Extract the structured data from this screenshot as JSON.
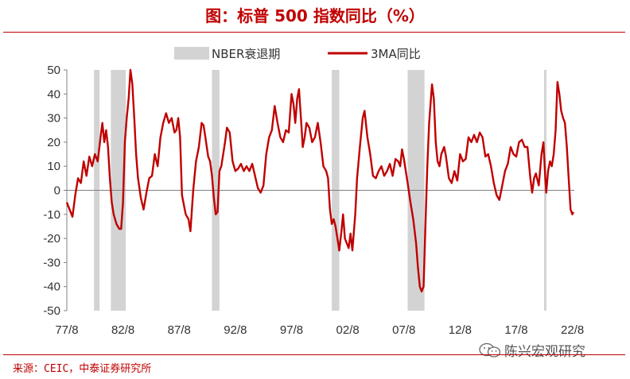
{
  "title": "图：标普 500 指数同比（%）",
  "source": "来源：CEIC，中泰证券研究所",
  "watermark": "陈兴宏观研究",
  "colors": {
    "accent": "#c00000",
    "recession": "#d3d3d3",
    "axis": "#808080"
  },
  "chart_data": {
    "type": "line",
    "legend": [
      "NBER衰退期",
      "3MA同比"
    ],
    "legend_position": "top-center",
    "ylim": [
      -50,
      50
    ],
    "y_ticks": [
      50,
      40,
      30,
      20,
      10,
      0,
      -10,
      -20,
      -30,
      -40,
      -50
    ],
    "x_ticks": [
      "77/8",
      "82/8",
      "87/8",
      "92/8",
      "97/8",
      "02/8",
      "07/8",
      "12/8",
      "17/8",
      "22/8"
    ],
    "recessions": [
      {
        "start": "1980/1",
        "end": "1980/7"
      },
      {
        "start": "1981/7",
        "end": "1982/11"
      },
      {
        "start": "1990/7",
        "end": "1991/3"
      },
      {
        "start": "2001/3",
        "end": "2001/11"
      },
      {
        "start": "2007/12",
        "end": "2009/6"
      },
      {
        "start": "2020/2",
        "end": "2020/4"
      }
    ],
    "series": [
      {
        "name": "3MA同比",
        "color": "#c00000",
        "points": [
          [
            "1977/8",
            -5
          ],
          [
            "1977/11",
            -8
          ],
          [
            "1978/2",
            -11
          ],
          [
            "1978/5",
            -2
          ],
          [
            "1978/8",
            5
          ],
          [
            "1978/11",
            3
          ],
          [
            "1979/2",
            12
          ],
          [
            "1979/5",
            6
          ],
          [
            "1979/8",
            14
          ],
          [
            "1979/11",
            10
          ],
          [
            "1980/2",
            15
          ],
          [
            "1980/5",
            12
          ],
          [
            "1980/8",
            22
          ],
          [
            "1980/10",
            28
          ],
          [
            "1980/12",
            20
          ],
          [
            "1981/2",
            25
          ],
          [
            "1981/4",
            18
          ],
          [
            "1981/6",
            5
          ],
          [
            "1981/8",
            -5
          ],
          [
            "1981/10",
            -10
          ],
          [
            "1982/1",
            -14
          ],
          [
            "1982/4",
            -16
          ],
          [
            "1982/6",
            -16
          ],
          [
            "1982/8",
            -5
          ],
          [
            "1982/10",
            20
          ],
          [
            "1982/12",
            30
          ],
          [
            "1983/2",
            38
          ],
          [
            "1983/4",
            50
          ],
          [
            "1983/6",
            44
          ],
          [
            "1983/8",
            30
          ],
          [
            "1983/10",
            15
          ],
          [
            "1983/12",
            5
          ],
          [
            "1984/3",
            -3
          ],
          [
            "1984/6",
            -8
          ],
          [
            "1984/9",
            -1
          ],
          [
            "1984/12",
            5
          ],
          [
            "1985/3",
            6
          ],
          [
            "1985/6",
            15
          ],
          [
            "1985/9",
            10
          ],
          [
            "1985/12",
            22
          ],
          [
            "1986/3",
            28
          ],
          [
            "1986/6",
            32
          ],
          [
            "1986/9",
            28
          ],
          [
            "1986/12",
            30
          ],
          [
            "1987/3",
            24
          ],
          [
            "1987/5",
            25
          ],
          [
            "1987/7",
            30
          ],
          [
            "1987/9",
            22
          ],
          [
            "1987/11",
            -2
          ],
          [
            "1988/1",
            -6
          ],
          [
            "1988/3",
            -10
          ],
          [
            "1988/6",
            -12
          ],
          [
            "1988/8",
            -17
          ],
          [
            "1988/11",
            0
          ],
          [
            "1989/2",
            12
          ],
          [
            "1989/5",
            18
          ],
          [
            "1989/8",
            28
          ],
          [
            "1989/10",
            27
          ],
          [
            "1989/12",
            22
          ],
          [
            "1990/3",
            14
          ],
          [
            "1990/5",
            12
          ],
          [
            "1990/7",
            6
          ],
          [
            "1990/9",
            -3
          ],
          [
            "1990/11",
            -10
          ],
          [
            "1991/1",
            -9
          ],
          [
            "1991/3",
            8
          ],
          [
            "1991/5",
            10
          ],
          [
            "1991/7",
            15
          ],
          [
            "1991/9",
            20
          ],
          [
            "1991/11",
            26
          ],
          [
            "1992/2",
            24
          ],
          [
            "1992/5",
            12
          ],
          [
            "1992/8",
            8
          ],
          [
            "1992/11",
            9
          ],
          [
            "1993/2",
            11
          ],
          [
            "1993/5",
            8
          ],
          [
            "1993/8",
            10
          ],
          [
            "1993/11",
            8
          ],
          [
            "1994/2",
            11
          ],
          [
            "1994/5",
            6
          ],
          [
            "1994/8",
            1
          ],
          [
            "1994/11",
            -1
          ],
          [
            "1995/2",
            2
          ],
          [
            "1995/5",
            15
          ],
          [
            "1995/8",
            22
          ],
          [
            "1995/11",
            25
          ],
          [
            "1996/2",
            35
          ],
          [
            "1996/5",
            28
          ],
          [
            "1996/8",
            22
          ],
          [
            "1996/11",
            20
          ],
          [
            "1997/2",
            25
          ],
          [
            "1997/5",
            24
          ],
          [
            "1997/8",
            40
          ],
          [
            "1997/10",
            36
          ],
          [
            "1997/12",
            28
          ],
          [
            "1998/2",
            38
          ],
          [
            "1998/4",
            42
          ],
          [
            "1998/6",
            30
          ],
          [
            "1998/8",
            18
          ],
          [
            "1998/10",
            22
          ],
          [
            "1998/12",
            28
          ],
          [
            "1999/3",
            26
          ],
          [
            "1999/6",
            20
          ],
          [
            "1999/9",
            22
          ],
          [
            "1999/12",
            28
          ],
          [
            "2000/3",
            20
          ],
          [
            "2000/6",
            10
          ],
          [
            "2000/9",
            8
          ],
          [
            "2000/11",
            5
          ],
          [
            "2001/1",
            -8
          ],
          [
            "2001/3",
            -14
          ],
          [
            "2001/5",
            -12
          ],
          [
            "2001/7",
            -15
          ],
          [
            "2001/9",
            -20
          ],
          [
            "2001/11",
            -25
          ],
          [
            "2002/1",
            -18
          ],
          [
            "2002/3",
            -10
          ],
          [
            "2002/5",
            -20
          ],
          [
            "2002/7",
            -22
          ],
          [
            "2002/9",
            -24
          ],
          [
            "2002/11",
            -18
          ],
          [
            "2003/1",
            -25
          ],
          [
            "2003/4",
            -10
          ],
          [
            "2003/6",
            5
          ],
          [
            "2003/9",
            18
          ],
          [
            "2003/12",
            30
          ],
          [
            "2004/2",
            33
          ],
          [
            "2004/5",
            22
          ],
          [
            "2004/8",
            15
          ],
          [
            "2004/11",
            6
          ],
          [
            "2005/2",
            5
          ],
          [
            "2005/5",
            8
          ],
          [
            "2005/8",
            10
          ],
          [
            "2005/11",
            6
          ],
          [
            "2006/2",
            8
          ],
          [
            "2006/5",
            11
          ],
          [
            "2006/8",
            6
          ],
          [
            "2006/11",
            13
          ],
          [
            "2007/2",
            12
          ],
          [
            "2007/4",
            10
          ],
          [
            "2007/6",
            17
          ],
          [
            "2007/8",
            13
          ],
          [
            "2007/10",
            8
          ],
          [
            "2007/12",
            3
          ],
          [
            "2008/3",
            -5
          ],
          [
            "2008/6",
            -12
          ],
          [
            "2008/9",
            -22
          ],
          [
            "2008/11",
            -32
          ],
          [
            "2009/1",
            -40
          ],
          [
            "2009/3",
            -42
          ],
          [
            "2009/5",
            -40
          ],
          [
            "2009/7",
            -15
          ],
          [
            "2009/9",
            10
          ],
          [
            "2009/11",
            28
          ],
          [
            "2010/2",
            44
          ],
          [
            "2010/4",
            38
          ],
          [
            "2010/6",
            20
          ],
          [
            "2010/8",
            12
          ],
          [
            "2010/10",
            10
          ],
          [
            "2010/12",
            15
          ],
          [
            "2011/3",
            18
          ],
          [
            "2011/5",
            14
          ],
          [
            "2011/8",
            5
          ],
          [
            "2011/11",
            3
          ],
          [
            "2012/2",
            8
          ],
          [
            "2012/5",
            4
          ],
          [
            "2012/8",
            15
          ],
          [
            "2012/11",
            12
          ],
          [
            "2013/2",
            13
          ],
          [
            "2013/5",
            22
          ],
          [
            "2013/8",
            20
          ],
          [
            "2013/11",
            23
          ],
          [
            "2014/2",
            20
          ],
          [
            "2014/5",
            24
          ],
          [
            "2014/8",
            22
          ],
          [
            "2014/11",
            14
          ],
          [
            "2015/2",
            15
          ],
          [
            "2015/5",
            10
          ],
          [
            "2015/8",
            3
          ],
          [
            "2015/11",
            -2
          ],
          [
            "2016/2",
            -4
          ],
          [
            "2016/5",
            2
          ],
          [
            "2016/8",
            8
          ],
          [
            "2016/11",
            11
          ],
          [
            "2017/2",
            18
          ],
          [
            "2017/5",
            15
          ],
          [
            "2017/8",
            14
          ],
          [
            "2017/11",
            20
          ],
          [
            "2018/2",
            21
          ],
          [
            "2018/5",
            18
          ],
          [
            "2018/8",
            18
          ],
          [
            "2018/11",
            5
          ],
          [
            "2019/1",
            -1
          ],
          [
            "2019/3",
            5
          ],
          [
            "2019/5",
            7
          ],
          [
            "2019/8",
            2
          ],
          [
            "2019/11",
            15
          ],
          [
            "2020/1",
            20
          ],
          [
            "2020/3",
            5
          ],
          [
            "2020/4",
            -1
          ],
          [
            "2020/6",
            8
          ],
          [
            "2020/8",
            12
          ],
          [
            "2020/10",
            10
          ],
          [
            "2020/12",
            15
          ],
          [
            "2021/2",
            25
          ],
          [
            "2021/4",
            45
          ],
          [
            "2021/6",
            40
          ],
          [
            "2021/8",
            33
          ],
          [
            "2021/10",
            30
          ],
          [
            "2021/12",
            28
          ],
          [
            "2022/2",
            18
          ],
          [
            "2022/4",
            5
          ],
          [
            "2022/6",
            -8
          ],
          [
            "2022/8",
            -10
          ],
          [
            "2022/9",
            -9
          ]
        ]
      }
    ]
  }
}
